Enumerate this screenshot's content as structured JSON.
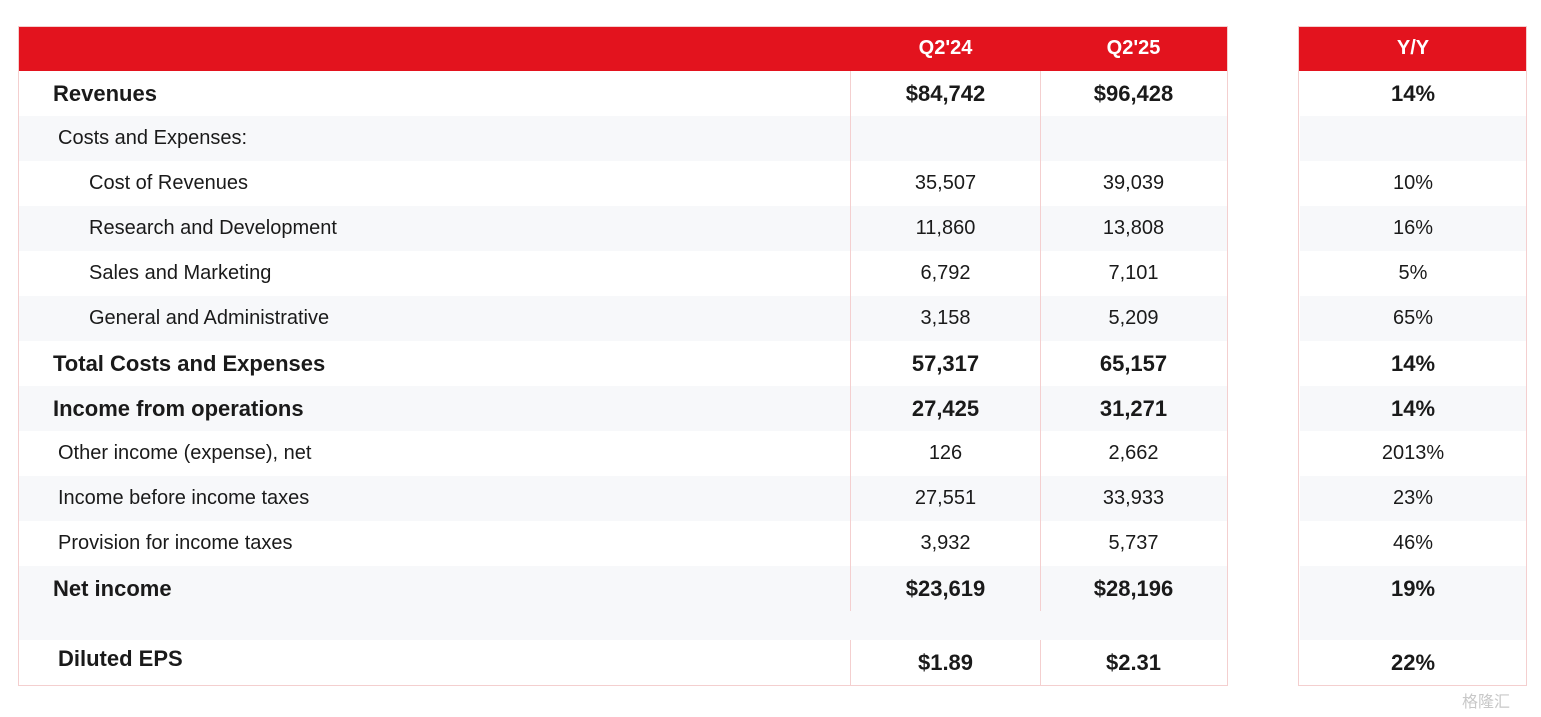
{
  "header": {
    "col_q2_24": "Q2'24",
    "col_q2_25": "Q2'25",
    "col_yy": "Y/Y"
  },
  "rows": [
    {
      "label": "Revenues",
      "q2_24": "$84,742",
      "q2_25": "$96,428",
      "yy": "14%",
      "bold": true,
      "indent": 0
    },
    {
      "label": "Costs and Expenses:",
      "q2_24": "",
      "q2_25": "",
      "yy": "",
      "bold": false,
      "indent": 1
    },
    {
      "label": "Cost of Revenues",
      "q2_24": "35,507",
      "q2_25": "39,039",
      "yy": "10%",
      "bold": false,
      "indent": 2
    },
    {
      "label": "Research and Development",
      "q2_24": "11,860",
      "q2_25": "13,808",
      "yy": "16%",
      "bold": false,
      "indent": 2
    },
    {
      "label": "Sales and Marketing",
      "q2_24": "6,792",
      "q2_25": "7,101",
      "yy": "5%",
      "bold": false,
      "indent": 2
    },
    {
      "label": "General and Administrative",
      "q2_24": "3,158",
      "q2_25": "5,209",
      "yy": "65%",
      "bold": false,
      "indent": 2
    },
    {
      "label": "Total Costs and Expenses",
      "q2_24": "57,317",
      "q2_25": "65,157",
      "yy": "14%",
      "bold": true,
      "indent": 0
    },
    {
      "label": "Income from operations",
      "q2_24": "27,425",
      "q2_25": "31,271",
      "yy": "14%",
      "bold": true,
      "indent": 0
    },
    {
      "label": "Other income (expense), net",
      "q2_24": "126",
      "q2_25": "2,662",
      "yy": "2013%",
      "bold": false,
      "indent": 1
    },
    {
      "label": "Income before income taxes",
      "q2_24": "27,551",
      "q2_25": "33,933",
      "yy": "23%",
      "bold": false,
      "indent": 1
    },
    {
      "label": "Provision for income taxes",
      "q2_24": "3,932",
      "q2_25": "5,737",
      "yy": "46%",
      "bold": false,
      "indent": 1
    },
    {
      "label": "Net income",
      "q2_24": "$23,619",
      "q2_25": "$28,196",
      "yy": "19%",
      "bold": true,
      "indent": 0
    }
  ],
  "eps": {
    "label": "Diluted EPS",
    "q2_24": "$1.89",
    "q2_25": "$2.31",
    "yy": "22%"
  },
  "watermark": "格隆汇",
  "colors": {
    "header_red": "#e3131e",
    "border_pink": "#f4cfcf",
    "row_shade": "#f7f8fa"
  }
}
